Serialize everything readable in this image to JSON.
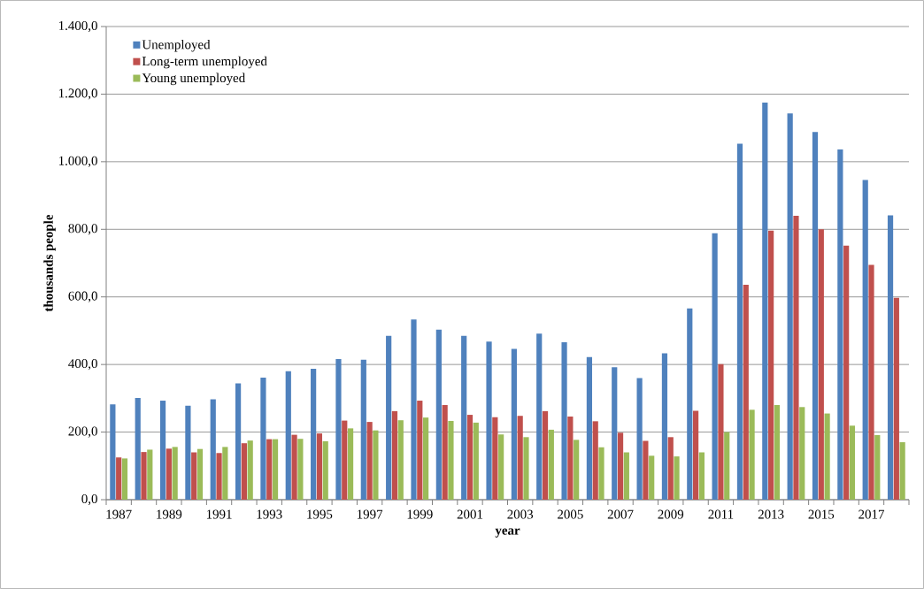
{
  "chart_data": {
    "type": "bar",
    "xlabel": "year",
    "ylabel": "thousands people",
    "categories": [
      "1987",
      null,
      "1989",
      null,
      "1991",
      null,
      "1993",
      null,
      "1995",
      null,
      "1997",
      null,
      "1999",
      null,
      "2001",
      null,
      "2003",
      null,
      "2005",
      null,
      "2007",
      null,
      "2009",
      null,
      "2011",
      null,
      "2013",
      null,
      "2015",
      null,
      "2017",
      null
    ],
    "series": [
      {
        "name": "Unemployed",
        "color": "#4f81bd",
        "values": [
          282,
          301,
          293,
          278,
          297,
          344,
          361,
          380,
          387,
          416,
          414,
          485,
          533,
          503,
          485,
          468,
          446,
          491,
          466,
          422,
          392,
          360,
          433,
          566,
          788,
          1053,
          1175,
          1143,
          1088,
          1036,
          946,
          841
        ]
      },
      {
        "name": "Long-term unemployed",
        "color": "#c0504d",
        "values": [
          125,
          141,
          151,
          140,
          138,
          167,
          179,
          192,
          196,
          234,
          230,
          262,
          293,
          280,
          251,
          244,
          248,
          262,
          246,
          232,
          198,
          174,
          185,
          263,
          401,
          636,
          796,
          840,
          800,
          752,
          695,
          597
        ]
      },
      {
        "name": "Young unemployed",
        "color": "#9bbb59",
        "values": [
          122,
          148,
          156,
          150,
          156,
          175,
          179,
          180,
          173,
          211,
          205,
          235,
          243,
          233,
          228,
          193,
          185,
          207,
          177,
          155,
          140,
          130,
          128,
          140,
          200,
          266,
          280,
          274,
          255,
          219,
          191,
          170
        ]
      }
    ],
    "ylim": [
      0,
      1400
    ],
    "yticks": [
      {
        "value": 0,
        "label": "0,0"
      },
      {
        "value": 200,
        "label": "200,0"
      },
      {
        "value": 400,
        "label": "400,0"
      },
      {
        "value": 600,
        "label": "600,0"
      },
      {
        "value": 800,
        "label": "800,0"
      },
      {
        "value": 1000,
        "label": "1.000,0"
      },
      {
        "value": 1200,
        "label": "1.200,0"
      },
      {
        "value": 1400,
        "label": "1.400,0"
      }
    ],
    "grid": "y",
    "legend": "top left"
  }
}
